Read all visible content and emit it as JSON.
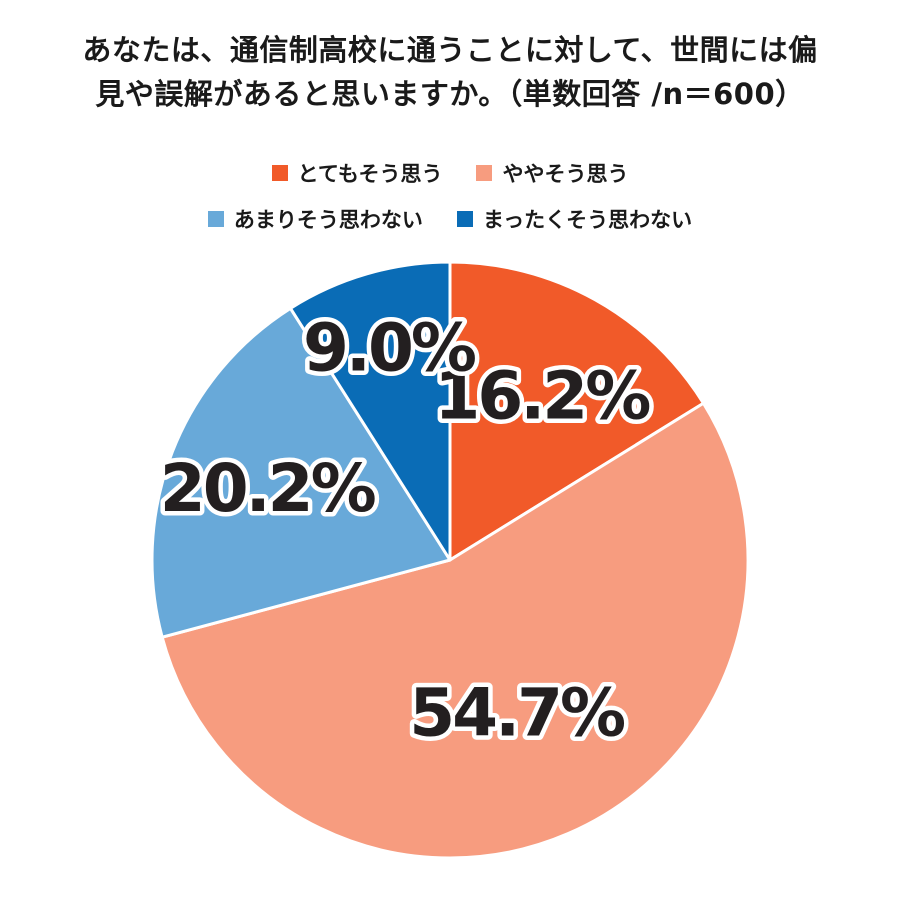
{
  "chart_data": {
    "type": "pie",
    "title": "あなたは、通信制高校に通うことに対して、世間には偏見や誤解があると思いますか。（単数回答 /n＝600）",
    "title_lines": [
      "あなたは、通信制高校に通うことに対して、世間には偏",
      "見や誤解があると思いますか。（単数回答 /n＝600）"
    ],
    "categories": [
      "とてもそう思う",
      "ややそう思う",
      "あまりそう思わない",
      "まったくそう思わない"
    ],
    "values": [
      16.2,
      54.7,
      20.2,
      9.0
    ],
    "value_labels": [
      "16.2%",
      "54.7%",
      "20.2%",
      "9.0%"
    ],
    "colors": [
      "#f15a29",
      "#f79c7f",
      "#68a9d9",
      "#0a6cb6"
    ],
    "start_angle_deg": 0,
    "direction": "clockwise",
    "legend_placement": "top",
    "legend_rows": [
      [
        0,
        1
      ],
      [
        2,
        3
      ]
    ]
  }
}
